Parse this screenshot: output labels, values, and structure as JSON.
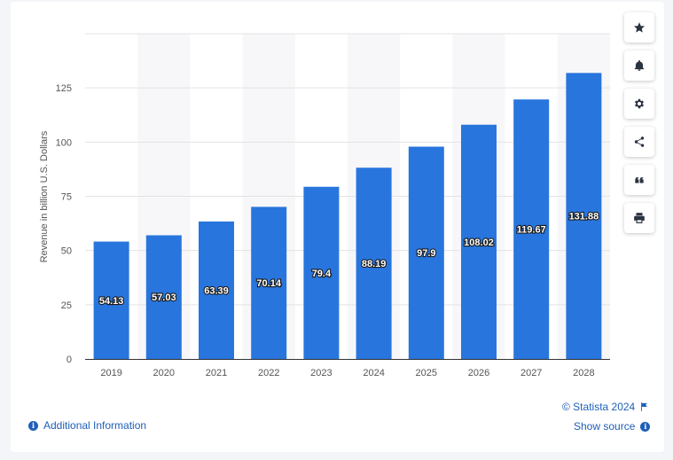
{
  "chart_data": {
    "type": "bar",
    "categories": [
      "2019",
      "2020",
      "2021",
      "2022",
      "2023",
      "2024",
      "2025",
      "2026",
      "2027",
      "2028"
    ],
    "values": [
      54.13,
      57.03,
      63.39,
      70.14,
      79.4,
      88.19,
      97.9,
      108.02,
      119.67,
      131.88
    ],
    "value_labels": [
      "54.13",
      "57.03",
      "63.39",
      "70.14",
      "79.4",
      "88.19",
      "97.9",
      "108.02",
      "119.67",
      "131.88"
    ],
    "ylabel": "Revenue in billion U.S. Dollars",
    "xlabel": "",
    "ylim": [
      0,
      150
    ],
    "yticks": [
      0,
      25,
      50,
      75,
      100,
      125
    ],
    "grid": true,
    "bar_color": "#2875dd",
    "alternate_band_color": "#f7f7f9"
  },
  "toolbar": {
    "buttons": [
      {
        "name": "star-button",
        "icon": "star-icon"
      },
      {
        "name": "notification-button",
        "icon": "bell-icon"
      },
      {
        "name": "settings-button",
        "icon": "gear-icon"
      },
      {
        "name": "share-button",
        "icon": "share-icon"
      },
      {
        "name": "cite-button",
        "icon": "quote-icon"
      },
      {
        "name": "print-button",
        "icon": "printer-icon"
      }
    ]
  },
  "footer": {
    "additional_info": "Additional Information",
    "copyright": "© Statista 2024",
    "show_source": "Show source"
  },
  "colors": {
    "link": "#1f5fb8",
    "axis_text": "#555555",
    "grid": "#e3e3e3"
  }
}
